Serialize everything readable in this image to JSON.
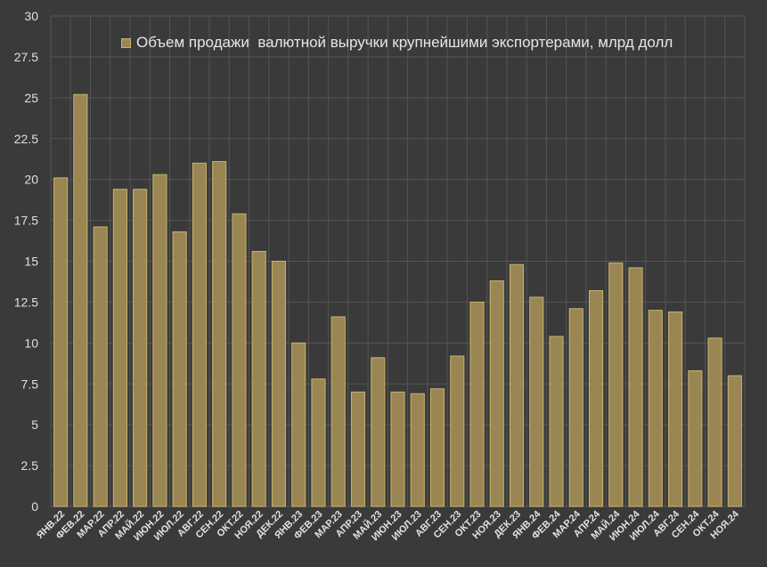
{
  "chart_data": {
    "type": "bar",
    "title": "",
    "xlabel": "",
    "ylabel": "",
    "ylim": [
      0,
      30
    ],
    "yticks": [
      "0",
      "2.5",
      "5",
      "7.5",
      "10",
      "12.5",
      "15",
      "17.5",
      "20",
      "22.5",
      "25",
      "27.5",
      "30"
    ],
    "grid": true,
    "legend_position": "top-left",
    "colors": {
      "background": "#3a3a3a",
      "bar_fill": "#9a8652",
      "bar_edge": "#c9b26f",
      "grid": "#555555",
      "text": "#e0e0e0"
    },
    "categories": [
      "ЯНВ.22",
      "ФЕВ.22",
      "МАР.22",
      "АПР.22",
      "МАЙ.22",
      "ИЮН.22",
      "ИЮЛ.22",
      "АВГ.22",
      "СЕН.22",
      "ОКТ.22",
      "НОЯ.22",
      "ДЕК.22",
      "ЯНВ.23",
      "ФЕВ.23",
      "МАР.23",
      "АПР.23",
      "МАЙ.23",
      "ИЮН.23",
      "ИЮЛ.23",
      "АВГ.23",
      "СЕН.23",
      "ОКТ.23",
      "НОЯ.23",
      "ДЕК.23",
      "ЯНВ.24",
      "ФЕВ.24",
      "МАР.24",
      "АПР.24",
      "МАЙ.24",
      "ИЮН.24",
      "ИЮЛ.24",
      "АВГ.24",
      "СЕН.24",
      "ОКТ.24",
      "НОЯ.24"
    ],
    "series": [
      {
        "name": "Объем продажи  валютной выручки крупнейшими экспортерами, млрд долл",
        "values": [
          20.1,
          25.2,
          17.1,
          19.4,
          19.4,
          20.3,
          16.8,
          21.0,
          21.1,
          17.9,
          15.6,
          15.0,
          10.0,
          7.8,
          11.6,
          7.0,
          9.1,
          7.0,
          6.9,
          7.2,
          9.2,
          12.5,
          13.8,
          14.8,
          12.8,
          10.4,
          12.1,
          13.2,
          14.9,
          14.6,
          12.0,
          11.9,
          8.3,
          10.3,
          8.0
        ]
      }
    ]
  }
}
